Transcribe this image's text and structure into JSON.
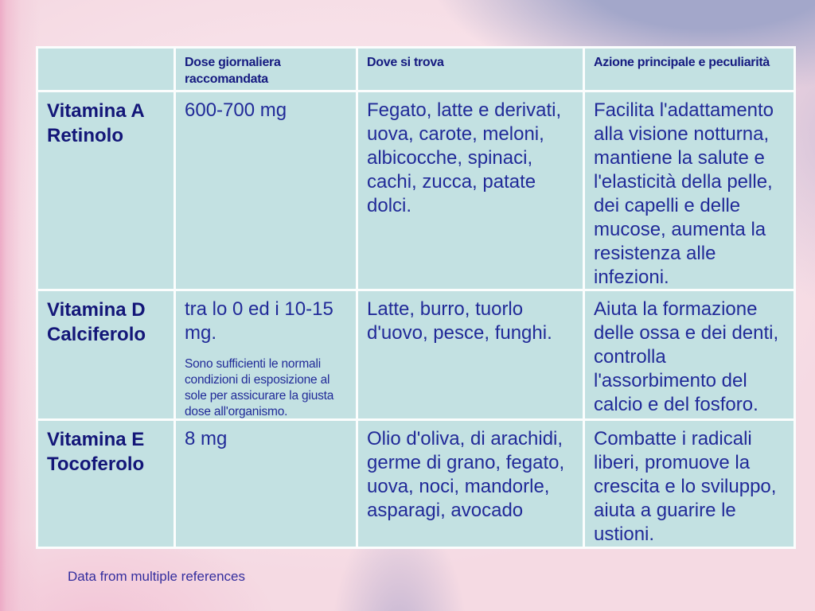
{
  "slide": {
    "footer": "Data from multiple references"
  },
  "colors": {
    "cell_background": "#c3e1e2",
    "table_border": "#fbfdfd",
    "heading_text": "#131678",
    "body_text": "#212a98",
    "footer_text": "#332d9e",
    "background_pink": "#f5dae3",
    "background_lavender": "#a3a7ca"
  },
  "table": {
    "headers": {
      "col1": "",
      "col2": "Dose giornaliera raccomandata",
      "col3": "Dove si trova",
      "col4": "Azione principale e peculiarità"
    },
    "rows": [
      {
        "name": "Vitamina A Retinolo",
        "dose": "600-700 mg",
        "sources": "Fegato, latte e derivati, uova, carote, meloni, albicocche, spinaci, cachi, zucca, patate dolci.",
        "action": "Facilita l'adattamento alla visione notturna, mantiene la salute e l'elasticità della pelle, dei capelli e delle mucose, aumenta la resistenza alle infezioni."
      },
      {
        "name": "Vitamina D Calciferolo",
        "dose": "tra lo 0 ed i 10-15 mg.",
        "dose_note": "Sono sufficienti le normali condizioni di esposizione al sole per assicurare la giusta dose all'organismo.",
        "sources": "Latte, burro, tuorlo d'uovo, pesce, funghi.",
        "action": "Aiuta la formazione delle ossa e dei denti, controlla l'assorbimento del calcio e del fosforo."
      },
      {
        "name": "Vitamina E Tocoferolo",
        "dose": "8 mg",
        "sources": "Olio d'oliva, di arachidi, germe di grano, fegato, uova, noci, mandorle, asparagi, avocado",
        "action": "Combatte i radicali liberi, promuove la crescita e lo sviluppo, aiuta a guarire le ustioni."
      }
    ]
  }
}
